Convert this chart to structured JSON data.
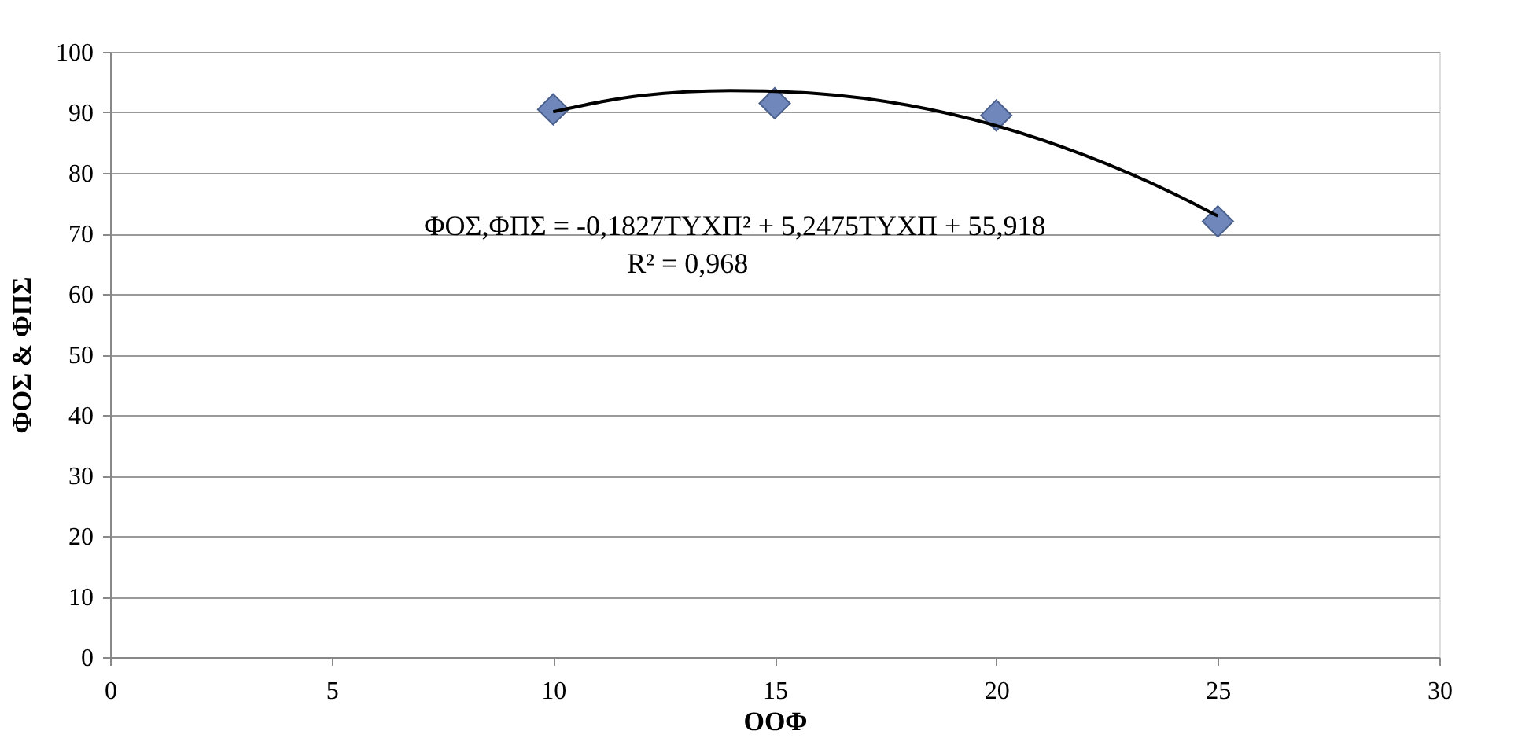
{
  "chart_data": {
    "type": "scatter",
    "xlabel": "ΟΟΦ",
    "ylabel": "ΦΟΣ & ΦΠΣ",
    "xlim": [
      0,
      30
    ],
    "xticks": [
      0,
      5,
      10,
      15,
      20,
      25,
      30
    ],
    "ylim": [
      0,
      100
    ],
    "yticks": [
      0,
      10,
      20,
      30,
      40,
      50,
      60,
      70,
      80,
      90,
      100
    ],
    "grid": "y",
    "marker": "diamond",
    "series": [
      {
        "color": "#6f87bb",
        "x": [
          10,
          15,
          20,
          25
        ],
        "values": [
          90.5,
          91.5,
          89.5,
          72
        ]
      },
      {
        "type": "line",
        "color": "#000000",
        "x": [
          10,
          12,
          14,
          16,
          18,
          20,
          22,
          24,
          25
        ],
        "values": [
          90.1,
          92.8,
          93.6,
          93.1,
          91.2,
          87.8,
          82.9,
          76.6,
          72.9
        ],
        "marker": "none",
        "line_style": "solid"
      }
    ],
    "annotations": [
      "ΦΟΣ,ΦΠΣ = -0,1827ΤΥΧΠ² + 5,2475ΤΥΧΠ + 55,918",
      "R² = 0,968"
    ]
  }
}
